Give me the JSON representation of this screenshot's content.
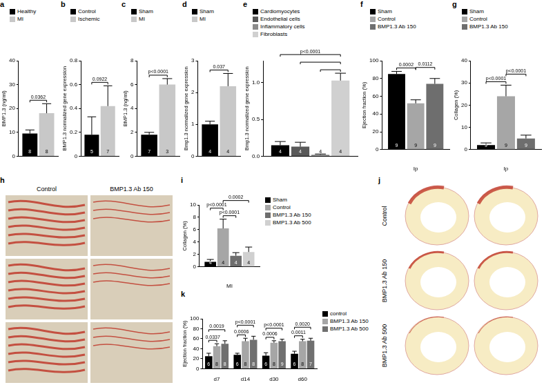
{
  "chart_data": [
    {
      "panel": "a",
      "type": "bar",
      "ylabel": "BMP1.3 (ng/ml)",
      "ylim": [
        0,
        40
      ],
      "yticks": [
        0,
        10,
        20,
        30,
        40
      ],
      "grid": false,
      "legend": "top",
      "series": [
        {
          "name": "Healthy",
          "color": "#000000",
          "values": [
            9.5
          ],
          "error": [
            1.5
          ],
          "n": [
            8
          ]
        },
        {
          "name": "MI",
          "color": "#c8c8c8",
          "values": [
            18
          ],
          "error": [
            4
          ],
          "n": [
            8
          ]
        }
      ],
      "comparisons": [
        {
          "groups": [
            0,
            1
          ],
          "label": "0.0362"
        }
      ]
    },
    {
      "panel": "b",
      "type": "bar",
      "ylabel": "BMP1.3 normalized gene expression",
      "ylim": [
        0,
        0.8
      ],
      "yticks": [
        0,
        0.2,
        0.4,
        0.6,
        0.8
      ],
      "grid": false,
      "legend": "top",
      "series": [
        {
          "name": "Control",
          "color": "#000000",
          "values": [
            0.18
          ],
          "error": [
            0.15
          ],
          "n": [
            5
          ]
        },
        {
          "name": "Ischemic",
          "color": "#c8c8c8",
          "values": [
            0.42
          ],
          "error": [
            0.17
          ],
          "n": [
            7
          ]
        }
      ],
      "comparisons": [
        {
          "groups": [
            0,
            1
          ],
          "label": "0.0922"
        }
      ]
    },
    {
      "panel": "c",
      "type": "bar",
      "ylabel": "BMP1.3 (ng/ml)",
      "ylim": [
        0,
        8
      ],
      "yticks": [
        0,
        2,
        4,
        6,
        8
      ],
      "grid": false,
      "legend": "top",
      "series": [
        {
          "name": "Sham",
          "color": "#000000",
          "values": [
            1.8
          ],
          "error": [
            0.2
          ],
          "n": [
            7
          ]
        },
        {
          "name": "MI",
          "color": "#c8c8c8",
          "values": [
            6.0
          ],
          "error": [
            0.5
          ],
          "n": [
            3
          ]
        }
      ],
      "comparisons": [
        {
          "groups": [
            0,
            1
          ],
          "label": "p<0.0001"
        }
      ]
    },
    {
      "panel": "d",
      "type": "bar",
      "ylabel": "Bmp1.3 normalized gene expression",
      "ylim": [
        0,
        3
      ],
      "yticks": [
        0,
        1,
        2,
        3
      ],
      "grid": false,
      "legend": "top",
      "series": [
        {
          "name": "Sham",
          "color": "#000000",
          "values": [
            1.0
          ],
          "error": [
            0.1
          ],
          "n": [
            4
          ]
        },
        {
          "name": "MI",
          "color": "#c8c8c8",
          "values": [
            2.2
          ],
          "error": [
            0.4
          ],
          "n": [
            4
          ]
        }
      ],
      "comparisons": [
        {
          "groups": [
            0,
            1
          ],
          "label": "0.037"
        }
      ]
    },
    {
      "panel": "e",
      "type": "bar",
      "ylabel": "Bmp1.3 normalized gene expression",
      "ylim": [
        0,
        1.3
      ],
      "yticks": [
        {
          "value": 0,
          "label": "0.0"
        },
        {
          "value": 0.5,
          "label": "0.5"
        },
        {
          "value": 1,
          "label": "1.0"
        }
      ],
      "grid": false,
      "legend": "top",
      "series": [
        {
          "name": "Cardiomyocytes",
          "color": "#000000",
          "values": [
            0.15
          ],
          "error": [
            0.05
          ],
          "n": [
            4
          ]
        },
        {
          "name": "Endothelial cells",
          "color": "#595959",
          "values": [
            0.13
          ],
          "error": [
            0.06
          ],
          "n": [
            4
          ]
        },
        {
          "name": "Inflammatory cells",
          "color": "#8c8c8c",
          "values": [
            0.02
          ],
          "error": [
            0.01
          ],
          "n": [
            4
          ]
        },
        {
          "name": "Fibroblasts",
          "color": "#d0d0d0",
          "values": [
            1.03
          ],
          "error": [
            0.1
          ],
          "n": [
            4
          ]
        }
      ],
      "comparisons": [
        {
          "groups": [
            2,
            3
          ]
        },
        {
          "groups": [
            1,
            3
          ]
        },
        {
          "groups": [
            0,
            3
          ],
          "label": "p<0.0001"
        }
      ]
    },
    {
      "panel": "f",
      "type": "bar",
      "ylabel": "Ejection fraction (%)",
      "xlabel": "Ip",
      "ylim": [
        0,
        100
      ],
      "yticks": [
        0,
        20,
        40,
        60,
        80,
        100
      ],
      "grid": false,
      "legend": "top",
      "series": [
        {
          "name": "Sham",
          "color": "#000000",
          "values": [
            85
          ],
          "error": [
            3
          ],
          "n": [
            9
          ]
        },
        {
          "name": "Control",
          "color": "#a6a6a6",
          "values": [
            52
          ],
          "error": [
            4
          ],
          "n": [
            9
          ]
        },
        {
          "name": "BMP1.3 Ab 150",
          "color": "#6e6e6e",
          "values": [
            74
          ],
          "error": [
            6
          ],
          "n": [
            9
          ]
        }
      ],
      "comparisons": [
        {
          "groups": [
            0,
            1
          ],
          "label": "0.0002"
        },
        {
          "groups": [
            1,
            2
          ],
          "label": "0.0112"
        }
      ]
    },
    {
      "panel": "g",
      "type": "bar",
      "ylabel": "Collagen (%)",
      "xlabel": "Ip",
      "ylim": [
        0,
        40
      ],
      "yticks": [
        0,
        10,
        20,
        30,
        40
      ],
      "grid": false,
      "legend": "top",
      "series": [
        {
          "name": "Sham",
          "color": "#000000",
          "values": [
            2
          ],
          "error": [
            1
          ],
          "n": [
            9
          ]
        },
        {
          "name": "Control",
          "color": "#a6a6a6",
          "values": [
            24
          ],
          "error": [
            5
          ],
          "n": [
            9
          ]
        },
        {
          "name": "BMP1.3 Ab 150",
          "color": "#6e6e6e",
          "values": [
            5
          ],
          "error": [
            1.5
          ],
          "n": [
            9
          ]
        }
      ],
      "comparisons": [
        {
          "groups": [
            0,
            1
          ],
          "label": "p<0.0001"
        },
        {
          "groups": [
            1,
            2
          ],
          "label": "p<0.0001"
        }
      ]
    },
    {
      "panel": "i",
      "type": "bar",
      "ylabel": "Collagen (%)",
      "xlabel": "MI",
      "ylim": [
        0,
        10
      ],
      "yticks": [
        0,
        2,
        4,
        6,
        8,
        10
      ],
      "grid": false,
      "legend": "right",
      "series": [
        {
          "name": "Sham",
          "color": "#000000",
          "values": [
            0.8
          ],
          "error": [
            0.4
          ],
          "n": [
            4
          ]
        },
        {
          "name": "Control",
          "color": "#a6a6a6",
          "values": [
            6.2
          ],
          "error": [
            1.5
          ],
          "n": [
            4
          ]
        },
        {
          "name": "BMP1.3 Ab 150",
          "color": "#6e6e6e",
          "values": [
            1.8
          ],
          "error": [
            0.5
          ],
          "n": [
            4
          ]
        },
        {
          "name": "BMP1.3 Ab 500",
          "color": "#d0d0d0",
          "values": [
            2.4
          ],
          "error": [
            0.8
          ],
          "n": [
            4
          ]
        }
      ],
      "comparisons": [
        {
          "groups": [
            1,
            2
          ],
          "label": "p<0.0001"
        },
        {
          "groups": [
            0,
            1
          ],
          "label": "p<0.0001"
        },
        {
          "groups": [
            1,
            3
          ],
          "label": "0.0002"
        }
      ]
    },
    {
      "panel": "k",
      "type": "bar",
      "ylabel": "Ejection fraction (%)",
      "ylim": [
        0,
        100
      ],
      "yticks": [
        0,
        20,
        40,
        60,
        80,
        100
      ],
      "grid": false,
      "legend": "right",
      "categories": [
        "d7",
        "d14",
        "d30",
        "d60"
      ],
      "series": [
        {
          "name": "control",
          "color": "#000000",
          "values": [
            25,
            28,
            26,
            30
          ],
          "error": [
            6,
            3,
            6,
            5
          ],
          "n": [
            6,
            6,
            6,
            6
          ]
        },
        {
          "name": "BMP1.3 Ab 150",
          "color": "#a6a6a6",
          "values": [
            45,
            55,
            52,
            55
          ],
          "error": [
            5,
            6,
            4,
            4
          ],
          "n": [
            8,
            8,
            8,
            8
          ]
        },
        {
          "name": "BMP1.3 Ab 500",
          "color": "#707070",
          "values": [
            50,
            58,
            55,
            56
          ],
          "error": [
            6,
            7,
            4,
            5
          ],
          "n": [
            8,
            8,
            9,
            7
          ]
        }
      ],
      "comparisons": [
        {
          "category": 0,
          "series": [
            0,
            1
          ],
          "label": "0.0337"
        },
        {
          "category": 0,
          "series": [
            0,
            2
          ],
          "label": "0.0019"
        },
        {
          "category": 1,
          "series": [
            0,
            1
          ],
          "label": "0.0006"
        },
        {
          "category": 1,
          "series": [
            0,
            2
          ],
          "label": "p<0.0001"
        },
        {
          "category": 2,
          "series": [
            0,
            1
          ],
          "label": "0.0006"
        },
        {
          "category": 2,
          "series": [
            0,
            2
          ],
          "label": "p<0.0001"
        },
        {
          "category": 3,
          "series": [
            0,
            1
          ],
          "label": "0.0011"
        },
        {
          "category": 3,
          "series": [
            0,
            2
          ],
          "label": "0.0020"
        }
      ]
    }
  ],
  "image_panels": [
    {
      "panel": "h",
      "columns": [
        "Control",
        "BMP1.3 Ab 150"
      ]
    },
    {
      "panel": "j",
      "rows": [
        "Control",
        "BMP1.3 Ab 150",
        "BMP1.3 Ab 500"
      ]
    }
  ]
}
